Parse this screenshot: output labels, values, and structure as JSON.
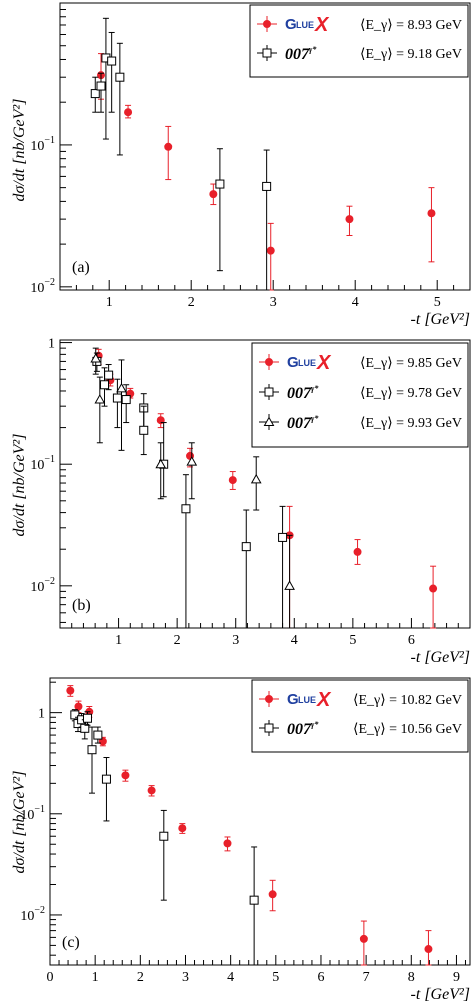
{
  "chart_data": [
    {
      "type": "scatter",
      "panel_label": "(a)",
      "xlabel": "-t [GeV²]",
      "ylabel": "dσ/dt [nb/GeV²]",
      "log_y": true,
      "xlim": [
        0.4,
        5.4
      ],
      "ylim": [
        0.0095,
        1.0
      ],
      "x_ticks": [
        "1",
        "2",
        "3",
        "4",
        "5"
      ],
      "y_ticks": [
        "10⁻¹",
        "10⁻²"
      ],
      "legend_placement": "top-right",
      "series": [
        {
          "name": "⟨E_γ⟩ = 8.93 GeV",
          "brand": "GlueX",
          "marker": "circle",
          "color": "#e8202a",
          "points": [
            {
              "x": 0.9,
              "y": 0.31,
              "lo": 0.21,
              "hi": 0.44
            },
            {
              "x": 1.23,
              "y": 0.17,
              "lo": 0.155,
              "hi": 0.19
            },
            {
              "x": 1.72,
              "y": 0.097,
              "lo": 0.057,
              "hi": 0.135
            },
            {
              "x": 2.27,
              "y": 0.045,
              "lo": 0.038,
              "hi": 0.053
            },
            {
              "x": 2.97,
              "y": 0.018,
              "lo": 0.0095,
              "hi": 0.028
            },
            {
              "x": 3.93,
              "y": 0.03,
              "lo": 0.023,
              "hi": 0.037
            },
            {
              "x": 4.93,
              "y": 0.033,
              "lo": 0.015,
              "hi": 0.05
            }
          ]
        },
        {
          "name": "⟨E_γ⟩ = 9.18 GeV",
          "brand": "007",
          "marker": "square",
          "color": "#000000",
          "points": [
            {
              "x": 0.83,
              "y": 0.23,
              "lo": 0.17,
              "hi": 0.3
            },
            {
              "x": 0.9,
              "y": 0.26,
              "lo": 0.17,
              "hi": 0.32
            },
            {
              "x": 0.96,
              "y": 0.41,
              "lo": 0.11,
              "hi": 0.78
            },
            {
              "x": 1.03,
              "y": 0.39,
              "lo": 0.17,
              "hi": 0.62
            },
            {
              "x": 1.13,
              "y": 0.3,
              "lo": 0.085,
              "hi": 0.52
            },
            {
              "x": 2.35,
              "y": 0.053,
              "lo": 0.013,
              "hi": 0.094
            },
            {
              "x": 2.92,
              "y": 0.051,
              "lo": 0.0095,
              "hi": 0.092
            }
          ]
        }
      ]
    },
    {
      "type": "scatter",
      "panel_label": "(b)",
      "xlabel": "-t [GeV²]",
      "ylabel": "dσ/dt [nb/GeV²]",
      "log_y": true,
      "xlim": [
        0.0,
        7.0
      ],
      "ylim": [
        0.0045,
        1.05
      ],
      "x_ticks": [
        "1",
        "2",
        "3",
        "4",
        "5",
        "6"
      ],
      "y_ticks": [
        "1",
        "10⁻¹",
        "10⁻²"
      ],
      "legend_placement": "top-right",
      "series": [
        {
          "name": "⟨E_γ⟩ = 9.85 GeV",
          "brand": "GlueX",
          "marker": "circle",
          "color": "#e8202a",
          "points": [
            {
              "x": 0.66,
              "y": 0.78,
              "lo": 0.66,
              "hi": 0.88
            },
            {
              "x": 0.86,
              "y": 0.49,
              "lo": 0.44,
              "hi": 0.55
            },
            {
              "x": 1.2,
              "y": 0.38,
              "lo": 0.35,
              "hi": 0.42
            },
            {
              "x": 1.72,
              "y": 0.23,
              "lo": 0.2,
              "hi": 0.26
            },
            {
              "x": 2.22,
              "y": 0.117,
              "lo": 0.095,
              "hi": 0.135
            },
            {
              "x": 2.95,
              "y": 0.074,
              "lo": 0.062,
              "hi": 0.087
            },
            {
              "x": 3.92,
              "y": 0.026,
              "lo": 0.0045,
              "hi": 0.045
            },
            {
              "x": 5.08,
              "y": 0.019,
              "lo": 0.015,
              "hi": 0.024
            },
            {
              "x": 6.37,
              "y": 0.0095,
              "lo": 0.0045,
              "hi": 0.0145
            }
          ]
        },
        {
          "name": "⟨E_γ⟩ = 9.78 GeV",
          "brand": "007",
          "marker": "square",
          "color": "#000000",
          "points": [
            {
              "x": 0.63,
              "y": 0.7,
              "lo": 0.58,
              "hi": 0.82
            },
            {
              "x": 0.76,
              "y": 0.45,
              "lo": 0.3,
              "hi": 0.62
            },
            {
              "x": 0.83,
              "y": 0.54,
              "lo": 0.41,
              "hi": 0.66
            },
            {
              "x": 0.98,
              "y": 0.35,
              "lo": 0.2,
              "hi": 0.5
            },
            {
              "x": 1.13,
              "y": 0.34,
              "lo": 0.22,
              "hi": 0.45
            },
            {
              "x": 1.43,
              "y": 0.29,
              "lo": 0.2,
              "hi": 0.38
            },
            {
              "x": 1.43,
              "y": 0.19,
              "lo": 0.12,
              "hi": 0.3
            },
            {
              "x": 1.77,
              "y": 0.1,
              "lo": 0.054,
              "hi": 0.22
            },
            {
              "x": 2.15,
              "y": 0.043,
              "lo": 0.0045,
              "hi": 0.082
            },
            {
              "x": 3.18,
              "y": 0.021,
              "lo": 0.0045,
              "hi": 0.042
            },
            {
              "x": 3.8,
              "y": 0.025,
              "lo": 0.0045,
              "hi": 0.045
            }
          ]
        },
        {
          "name": "⟨E_γ⟩ = 9.93 GeV",
          "brand": "007",
          "marker": "triangle",
          "color": "#000000",
          "points": [
            {
              "x": 0.61,
              "y": 0.74,
              "lo": 0.55,
              "hi": 0.9
            },
            {
              "x": 0.68,
              "y": 0.34,
              "lo": 0.15,
              "hi": 0.52
            },
            {
              "x": 1.05,
              "y": 0.42,
              "lo": 0.13,
              "hi": 0.72
            },
            {
              "x": 1.72,
              "y": 0.1,
              "lo": 0.052,
              "hi": 0.15
            },
            {
              "x": 2.25,
              "y": 0.105,
              "lo": 0.052,
              "hi": 0.15
            },
            {
              "x": 3.35,
              "y": 0.075,
              "lo": 0.042,
              "hi": 0.115
            },
            {
              "x": 3.92,
              "y": 0.01,
              "lo": 0.0045,
              "hi": 0.026
            }
          ]
        }
      ]
    },
    {
      "type": "scatter",
      "panel_label": "(c)",
      "xlabel": "-t [GeV²]",
      "ylabel": "dσ/dt [nb/GeV²]",
      "log_y": true,
      "xlim": [
        0.0,
        9.3
      ],
      "ylim": [
        0.0032,
        2.2
      ],
      "x_ticks": [
        "0",
        "1",
        "2",
        "3",
        "4",
        "5",
        "6",
        "7",
        "8",
        "9"
      ],
      "y_ticks": [
        "1",
        "10⁻¹",
        "10⁻²"
      ],
      "legend_placement": "top-right",
      "series": [
        {
          "name": "⟨E_γ⟩ = 10.82 GeV",
          "brand": "GlueX",
          "marker": "circle",
          "color": "#e8202a",
          "points": [
            {
              "x": 0.45,
              "y": 1.65,
              "lo": 1.45,
              "hi": 1.85
            },
            {
              "x": 0.63,
              "y": 1.15,
              "lo": 1.0,
              "hi": 1.3
            },
            {
              "x": 0.87,
              "y": 1.02,
              "lo": 0.9,
              "hi": 1.15
            },
            {
              "x": 1.17,
              "y": 0.52,
              "lo": 0.47,
              "hi": 0.57
            },
            {
              "x": 1.67,
              "y": 0.24,
              "lo": 0.21,
              "hi": 0.27
            },
            {
              "x": 2.25,
              "y": 0.17,
              "lo": 0.15,
              "hi": 0.19
            },
            {
              "x": 2.93,
              "y": 0.072,
              "lo": 0.064,
              "hi": 0.08
            },
            {
              "x": 3.93,
              "y": 0.051,
              "lo": 0.043,
              "hi": 0.059
            },
            {
              "x": 4.93,
              "y": 0.016,
              "lo": 0.011,
              "hi": 0.022
            },
            {
              "x": 6.95,
              "y": 0.0058,
              "lo": 0.0031,
              "hi": 0.0087
            },
            {
              "x": 8.38,
              "y": 0.0046,
              "lo": 0.0032,
              "hi": 0.007
            }
          ]
        },
        {
          "name": "⟨E_γ⟩ = 10.56 GeV",
          "brand": "007",
          "marker": "square",
          "color": "#000000",
          "points": [
            {
              "x": 0.55,
              "y": 0.95,
              "lo": 0.83,
              "hi": 1.07
            },
            {
              "x": 0.62,
              "y": 0.78,
              "lo": 0.65,
              "hi": 0.9
            },
            {
              "x": 0.7,
              "y": 0.85,
              "lo": 0.72,
              "hi": 0.98
            },
            {
              "x": 0.77,
              "y": 0.7,
              "lo": 0.55,
              "hi": 0.85
            },
            {
              "x": 0.83,
              "y": 0.88,
              "lo": 0.75,
              "hi": 1.02
            },
            {
              "x": 0.93,
              "y": 0.43,
              "lo": 0.16,
              "hi": 0.72
            },
            {
              "x": 1.06,
              "y": 0.6,
              "lo": 0.5,
              "hi": 0.72
            },
            {
              "x": 1.25,
              "y": 0.22,
              "lo": 0.085,
              "hi": 0.36
            },
            {
              "x": 2.52,
              "y": 0.06,
              "lo": 0.014,
              "hi": 0.108
            },
            {
              "x": 4.52,
              "y": 0.014,
              "lo": 0.0032,
              "hi": 0.047
            }
          ]
        }
      ]
    }
  ],
  "colors": {
    "gluex_red": "#e8202a",
    "data_black": "#000000",
    "gluex_blue": "#2040a0"
  },
  "brand_text": {
    "gluex_prefix": "G",
    "gluex_lue": "LUE",
    "gluex_x": "X",
    "b007": "007",
    "b007_sup": "γ*"
  }
}
